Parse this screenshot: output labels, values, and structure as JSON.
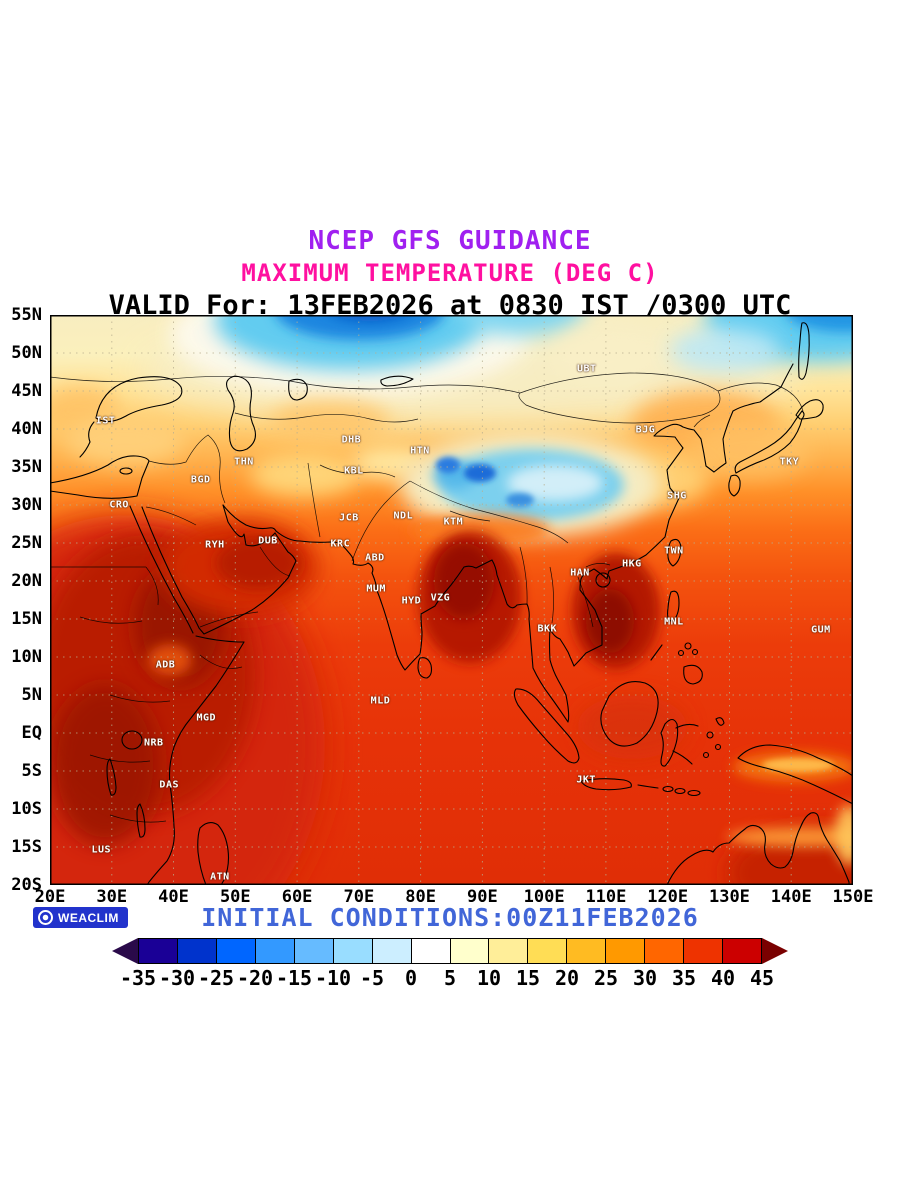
{
  "header": {
    "line1": "NCEP GFS GUIDANCE",
    "line2": "MAXIMUM TEMPERATURE (DEG C)",
    "line3": "VALID For: 13FEB2026 at 0830 IST /0300 UTC"
  },
  "colors": {
    "title1": "#a020f0",
    "title2": "#ff10a0",
    "title3": "#000000",
    "footer_text": "#4166d8",
    "logo_bg": "#2233cc"
  },
  "map": {
    "extent": {
      "lon_min": 20,
      "lon_max": 150,
      "lat_min": -20,
      "lat_max": 55
    },
    "lat_ticks": [
      "55N",
      "50N",
      "45N",
      "40N",
      "35N",
      "30N",
      "25N",
      "20N",
      "15N",
      "10N",
      "5N",
      "EQ",
      "5S",
      "10S",
      "15S",
      "20S"
    ],
    "lon_ticks": [
      "20E",
      "30E",
      "40E",
      "50E",
      "60E",
      "70E",
      "80E",
      "90E",
      "100E",
      "110E",
      "120E",
      "130E",
      "140E",
      "150E"
    ],
    "stations": [
      {
        "label": "IST",
        "lon": 29.0,
        "lat": 41.0
      },
      {
        "label": "THN",
        "lon": 51.4,
        "lat": 35.7
      },
      {
        "label": "BGD",
        "lon": 44.4,
        "lat": 33.3
      },
      {
        "label": "CRO",
        "lon": 31.2,
        "lat": 30.0
      },
      {
        "label": "RYH",
        "lon": 46.7,
        "lat": 24.7
      },
      {
        "label": "DUB",
        "lon": 55.3,
        "lat": 25.3
      },
      {
        "label": "KBL",
        "lon": 69.2,
        "lat": 34.5
      },
      {
        "label": "DHB",
        "lon": 68.8,
        "lat": 38.6
      },
      {
        "label": "HTN",
        "lon": 79.9,
        "lat": 37.1
      },
      {
        "label": "UBT",
        "lon": 106.9,
        "lat": 47.9
      },
      {
        "label": "BJG",
        "lon": 116.4,
        "lat": 39.9
      },
      {
        "label": "TKY",
        "lon": 139.7,
        "lat": 35.7
      },
      {
        "label": "SHG",
        "lon": 121.5,
        "lat": 31.2
      },
      {
        "label": "TWN",
        "lon": 121.0,
        "lat": 24.0
      },
      {
        "label": "HKG",
        "lon": 114.2,
        "lat": 22.3
      },
      {
        "label": "HAN",
        "lon": 105.8,
        "lat": 21.0
      },
      {
        "label": "BKK",
        "lon": 100.5,
        "lat": 13.7
      },
      {
        "label": "MNL",
        "lon": 121.0,
        "lat": 14.6
      },
      {
        "label": "GUM",
        "lon": 144.8,
        "lat": 13.5
      },
      {
        "label": "KRC",
        "lon": 67.0,
        "lat": 24.9
      },
      {
        "label": "JCB",
        "lon": 68.4,
        "lat": 28.3
      },
      {
        "label": "NDL",
        "lon": 77.2,
        "lat": 28.6
      },
      {
        "label": "KTM",
        "lon": 85.3,
        "lat": 27.7
      },
      {
        "label": "ABD",
        "lon": 72.6,
        "lat": 23.0
      },
      {
        "label": "MUM",
        "lon": 72.8,
        "lat": 19.0
      },
      {
        "label": "HYD",
        "lon": 78.5,
        "lat": 17.4
      },
      {
        "label": "VZG",
        "lon": 83.2,
        "lat": 17.7
      },
      {
        "label": "MLD",
        "lon": 73.5,
        "lat": 4.2
      },
      {
        "label": "ADB",
        "lon": 38.7,
        "lat": 9.0
      },
      {
        "label": "MGD",
        "lon": 45.3,
        "lat": 2.0
      },
      {
        "label": "NRB",
        "lon": 36.8,
        "lat": -1.3
      },
      {
        "label": "DAS",
        "lon": 39.3,
        "lat": -6.8
      },
      {
        "label": "LUS",
        "lon": 28.3,
        "lat": -15.4
      },
      {
        "label": "ATN",
        "lon": 47.5,
        "lat": -18.9
      },
      {
        "label": "JKT",
        "lon": 106.8,
        "lat": -6.2
      }
    ]
  },
  "footer": {
    "logo_label": "WEACLIM",
    "initial_conditions": "INITIAL CONDITIONS:00Z11FEB2026"
  },
  "colorbar": {
    "tick_labels": [
      "-35",
      "-30",
      "-25",
      "-20",
      "-15",
      "-10",
      "-5",
      "0",
      "5",
      "10",
      "15",
      "20",
      "25",
      "30",
      "35",
      "40",
      "45"
    ],
    "segment_colors": [
      "#1a0096",
      "#0033cc",
      "#0066ff",
      "#3399ff",
      "#66bbff",
      "#99ddff",
      "#cceeff",
      "#ffffff",
      "#ffffcc",
      "#ffee99",
      "#ffdd55",
      "#ffbb22",
      "#ff9900",
      "#ff6600",
      "#ee3300",
      "#cc0000"
    ],
    "arrow_left_color": "#2a0a4a",
    "arrow_right_color": "#7a0000"
  }
}
